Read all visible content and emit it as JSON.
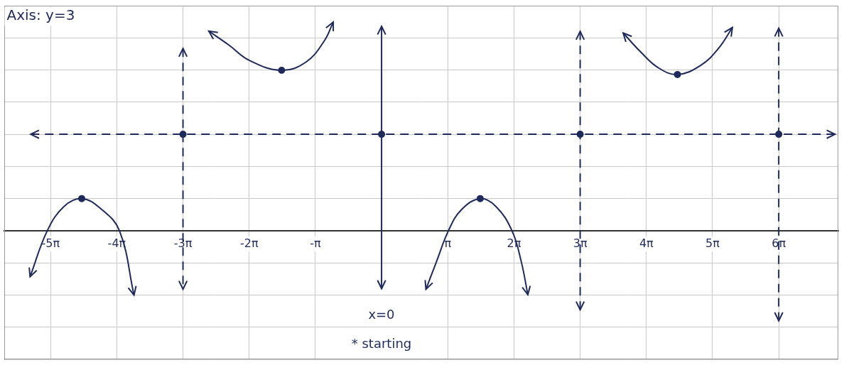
{
  "chart_data": {
    "type": "line",
    "annotations": [
      "Axis: y=3",
      "x=0",
      "* starting"
    ],
    "xlim": [
      -5.7,
      6.9
    ],
    "ylim": [
      -4,
      7
    ],
    "xticks": [
      {
        "value": -5,
        "label": "-5π"
      },
      {
        "value": -4,
        "label": "-4π"
      },
      {
        "value": -3,
        "label": "-3π"
      },
      {
        "value": -2,
        "label": "-2π"
      },
      {
        "value": -1,
        "label": "-π"
      },
      {
        "value": 1,
        "label": "π"
      },
      {
        "value": 2,
        "label": "2π"
      },
      {
        "value": 3,
        "label": "3π"
      },
      {
        "value": 4,
        "label": "4π"
      },
      {
        "value": 5,
        "label": "5π"
      },
      {
        "value": 6,
        "label": "6π"
      }
    ],
    "yticks": [
      -4,
      -3,
      -2,
      -1,
      0,
      1,
      2,
      3,
      4,
      5,
      6,
      7
    ],
    "grid": true,
    "tick_labels": "x",
    "color": "#1f2a5c",
    "series": [
      {
        "x": [
          -5.31,
          -5.05,
          -4.8,
          -4.53,
          -4.25,
          -3.96,
          -3.74
        ],
        "values": [
          -1.43,
          0,
          0.75,
          1,
          0.7,
          0,
          -2.0
        ],
        "line_style": "solid",
        "marker": "arrow"
      },
      {
        "x": [
          -2.61,
          -2.31,
          -1.99,
          -1.51,
          -1.14,
          -0.87,
          -0.73
        ],
        "values": [
          6.21,
          5.78,
          5.29,
          4.99,
          5.25,
          5.89,
          6.49
        ],
        "line_style": "solid",
        "marker": "arrow"
      },
      {
        "x": [
          0.67,
          0.83,
          1.01,
          1.2,
          1.49,
          1.73,
          1.97,
          2.11,
          2.21
        ],
        "values": [
          -1.82,
          -0.96,
          0,
          0.64,
          1,
          0.75,
          0,
          -0.96,
          -1.99
        ],
        "line_style": "solid",
        "marker": "arrow"
      },
      {
        "x": [
          3.65,
          3.91,
          4.18,
          4.47,
          4.82,
          5.09,
          5.3
        ],
        "values": [
          6.15,
          5.57,
          5.07,
          4.86,
          5.14,
          5.67,
          6.32
        ],
        "line_style": "solid",
        "marker": "arrow"
      },
      {
        "x": [
          -3,
          -3
        ],
        "values": [
          5.67,
          -1.82
        ],
        "line_style": "dashed",
        "marker": "arrow"
      },
      {
        "x": [
          3,
          3
        ],
        "values": [
          6.2,
          -2.46
        ],
        "line_style": "dashed",
        "marker": "arrow"
      },
      {
        "x": [
          6,
          6
        ],
        "values": [
          6.3,
          -2.8
        ],
        "line_style": "dashed",
        "marker": "arrow"
      },
      {
        "x": [
          0,
          0
        ],
        "values": [
          6.36,
          -1.8
        ],
        "line_style": "solid",
        "marker": "arrow"
      },
      {
        "x": [
          -5.3,
          6.85
        ],
        "values": [
          3,
          3
        ],
        "line_style": "dashed",
        "marker": "arrow"
      },
      {
        "type": "scatter",
        "x": [
          -4.53,
          -1.51,
          1.49,
          4.47,
          -3,
          0,
          3,
          6
        ],
        "values": [
          1,
          4.99,
          1,
          4.86,
          3,
          3,
          3,
          3
        ],
        "marker": "circle"
      }
    ]
  }
}
